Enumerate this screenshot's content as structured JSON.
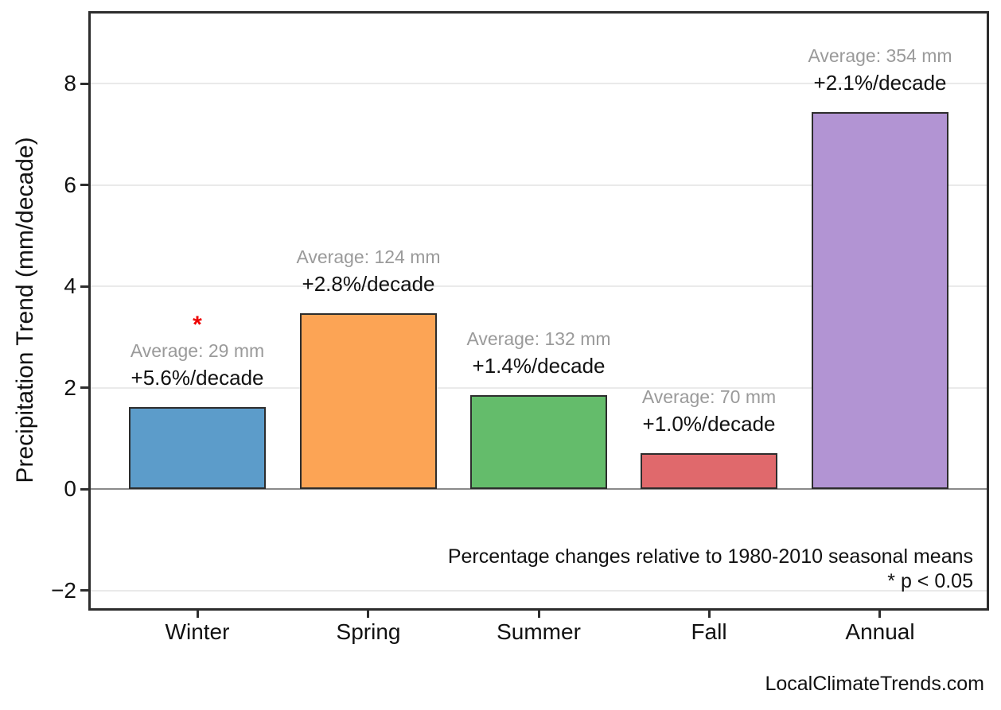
{
  "chart_data": {
    "type": "bar",
    "title": "",
    "categories": [
      "Winter",
      "Spring",
      "Summer",
      "Fall",
      "Annual"
    ],
    "values": [
      1.62,
      3.47,
      1.85,
      0.7,
      7.43
    ],
    "value_unit": "mm/decade",
    "xlabel": "",
    "ylabel": "Precipitation Trend (mm/decade)",
    "ylim": [
      -2.4,
      9.43
    ],
    "yticks": [
      -2,
      0,
      2,
      4,
      6,
      8
    ],
    "grid": true,
    "legend": false,
    "bar_colors": [
      "#5C9CCA",
      "#FCA455",
      "#64BC6B",
      "#E0696C",
      "#B294D3"
    ],
    "bar_edge_color": "#2D2D2D",
    "grid_color": "#EAEAEA",
    "zero_line_color": "#8A8A8A",
    "average_label_color": "#9A9A9A",
    "significance_marker": "*",
    "significance_color": "#EE0000",
    "annotations": [
      {
        "category": "Winter",
        "average_label": "Average: 29 mm",
        "trend_label": "+5.6%/decade",
        "significant": true
      },
      {
        "category": "Spring",
        "average_label": "Average: 124 mm",
        "trend_label": "+2.8%/decade",
        "significant": false
      },
      {
        "category": "Summer",
        "average_label": "Average: 132 mm",
        "trend_label": "+1.4%/decade",
        "significant": false
      },
      {
        "category": "Fall",
        "average_label": "Average: 70 mm",
        "trend_label": "+1.0%/decade",
        "significant": false
      },
      {
        "category": "Annual",
        "average_label": "Average: 354 mm",
        "trend_label": "+2.1%/decade",
        "significant": false
      }
    ],
    "notes": [
      "Percentage changes relative to 1980-2010 seasonal means",
      "* p < 0.05"
    ]
  },
  "footer": {
    "watermark": "LocalClimateTrends.com"
  }
}
